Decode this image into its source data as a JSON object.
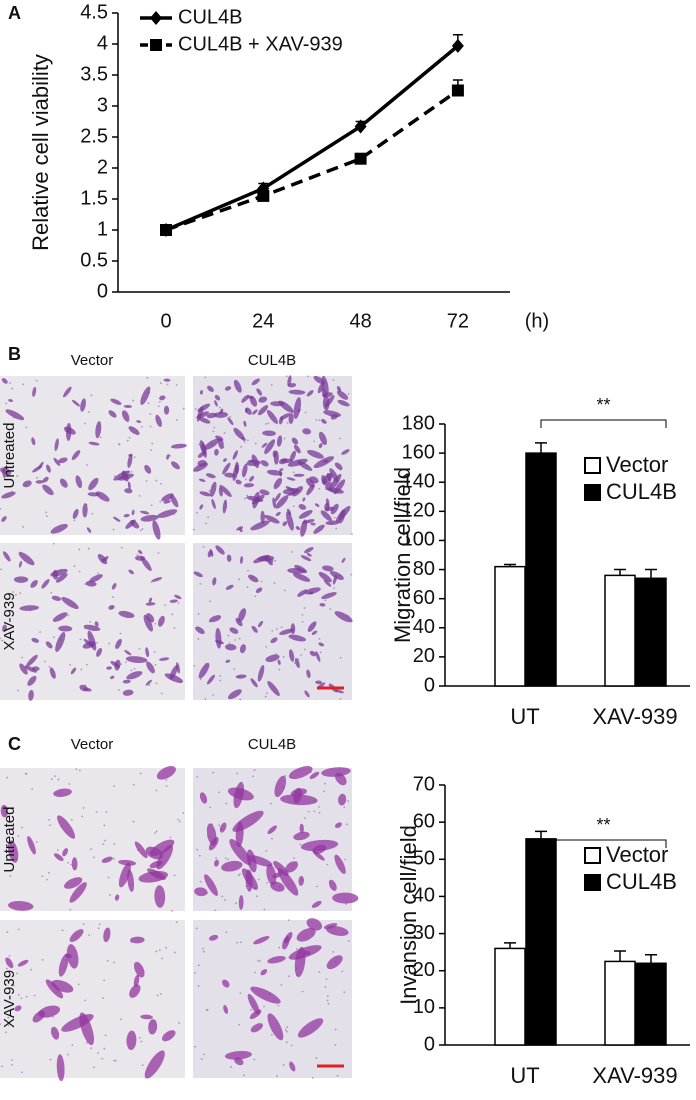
{
  "chart_data": [
    {
      "type": "line",
      "panel_label": "A",
      "ylabel": "Relative cell viability",
      "x_label": "(h)",
      "categories": [
        "0",
        "24",
        "48",
        "72"
      ],
      "series": [
        {
          "name": "CUL4B",
          "color": "#000000",
          "line_style": "solid",
          "marker": "diamond",
          "values": [
            1,
            1.67,
            2.67,
            3.97
          ],
          "errors": [
            0.03,
            0.08,
            0.08,
            0.18
          ]
        },
        {
          "name": "CUL4B + XAV-939",
          "color": "#000000",
          "line_style": "dashed",
          "marker": "square",
          "values": [
            1,
            1.55,
            2.15,
            3.25
          ],
          "errors": [
            0.02,
            0.04,
            0.04,
            0.17
          ]
        }
      ],
      "ylim": [
        0,
        4.5
      ],
      "yticks": [
        0,
        0.5,
        1,
        1.5,
        2,
        2.5,
        3,
        3.5,
        4,
        4.5
      ]
    },
    {
      "type": "bar",
      "panel_label": "B",
      "image_columns": [
        "Vector",
        "CUL4B"
      ],
      "image_rows": [
        "Untreated",
        "XAV-939"
      ],
      "ylabel": "Migration cell/field",
      "annotation": "**",
      "categories": [
        "UT",
        "XAV-939"
      ],
      "series": [
        {
          "name": "Vector",
          "color": "#ffffff",
          "values": [
            82,
            76
          ],
          "errors": [
            1.5,
            4
          ]
        },
        {
          "name": "CUL4B",
          "color": "#000000",
          "values": [
            160,
            74
          ],
          "errors": [
            7,
            6
          ]
        }
      ],
      "ylim": [
        0,
        180
      ],
      "yticks": [
        0,
        20,
        40,
        60,
        80,
        100,
        120,
        140,
        160,
        180
      ]
    },
    {
      "type": "bar",
      "panel_label": "C",
      "image_columns": [
        "Vector",
        "CUL4B"
      ],
      "image_rows": [
        "Untreated",
        "XAV-939"
      ],
      "ylabel": "Invansion cell/field",
      "annotation": "**",
      "categories": [
        "UT",
        "XAV-939"
      ],
      "series": [
        {
          "name": "Vector",
          "color": "#ffffff",
          "values": [
            26,
            22.5
          ],
          "errors": [
            1.5,
            2.8
          ]
        },
        {
          "name": "CUL4B",
          "color": "#000000",
          "values": [
            55.5,
            22
          ],
          "errors": [
            2,
            2.3
          ]
        }
      ],
      "ylim": [
        0,
        70
      ],
      "yticks": [
        0,
        10,
        20,
        30,
        40,
        50,
        60,
        70
      ]
    }
  ]
}
